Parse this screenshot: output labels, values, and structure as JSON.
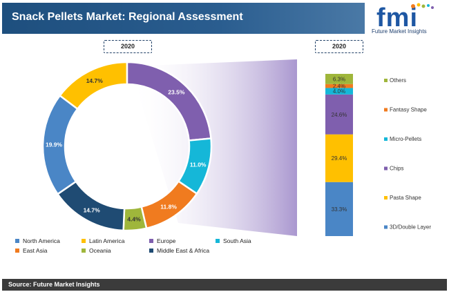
{
  "header": {
    "title": "Snack Pellets Market: Regional Assessment"
  },
  "logo": {
    "letters": "fmi",
    "subtitle": "Future Market Insights"
  },
  "year_labels": {
    "donut": "2020",
    "bar": "2020"
  },
  "footer": {
    "source": "Source: Future Market Insights"
  },
  "colors": {
    "blue": "#4a86c6",
    "yellow": "#ffc000",
    "purple": "#7f5fae",
    "cyan": "#15b7d8",
    "orange": "#f07b1f",
    "olive": "#9fb63b",
    "navy": "#1f4b73"
  },
  "chart_data": [
    {
      "type": "pie",
      "subtype": "donut",
      "title": "2020",
      "categories": [
        "North America",
        "Latin America",
        "Europe",
        "South Asia",
        "East Asia",
        "Oceania",
        "Middle East & Africa"
      ],
      "values": [
        19.9,
        14.7,
        23.5,
        11.0,
        11.8,
        4.4,
        14.7
      ],
      "labels": [
        "19.9%",
        "14.7%",
        "23.5%",
        "11.0%",
        "11.8%",
        "4.4%",
        "14.7%"
      ],
      "colors": [
        "#4a86c6",
        "#ffc000",
        "#7f5fae",
        "#15b7d8",
        "#f07b1f",
        "#9fb63b",
        "#1f4b73"
      ],
      "legend_position": "bottom"
    },
    {
      "type": "bar",
      "subtype": "stacked",
      "title": "2020",
      "categories": [
        "3D/Double Layer",
        "Pasta Shape",
        "Chips",
        "Micro-Pellets",
        "Fantasy Shape",
        "Others"
      ],
      "values": [
        33.3,
        29.4,
        24.6,
        4.0,
        2.4,
        6.3
      ],
      "labels": [
        "33.3%",
        "29.4%",
        "24.6%",
        "4.0%",
        "2.4%",
        "6.3%"
      ],
      "colors": [
        "#4a86c6",
        "#ffc000",
        "#7f5fae",
        "#15b7d8",
        "#f07b1f",
        "#9fb63b"
      ],
      "legend_position": "right"
    }
  ]
}
